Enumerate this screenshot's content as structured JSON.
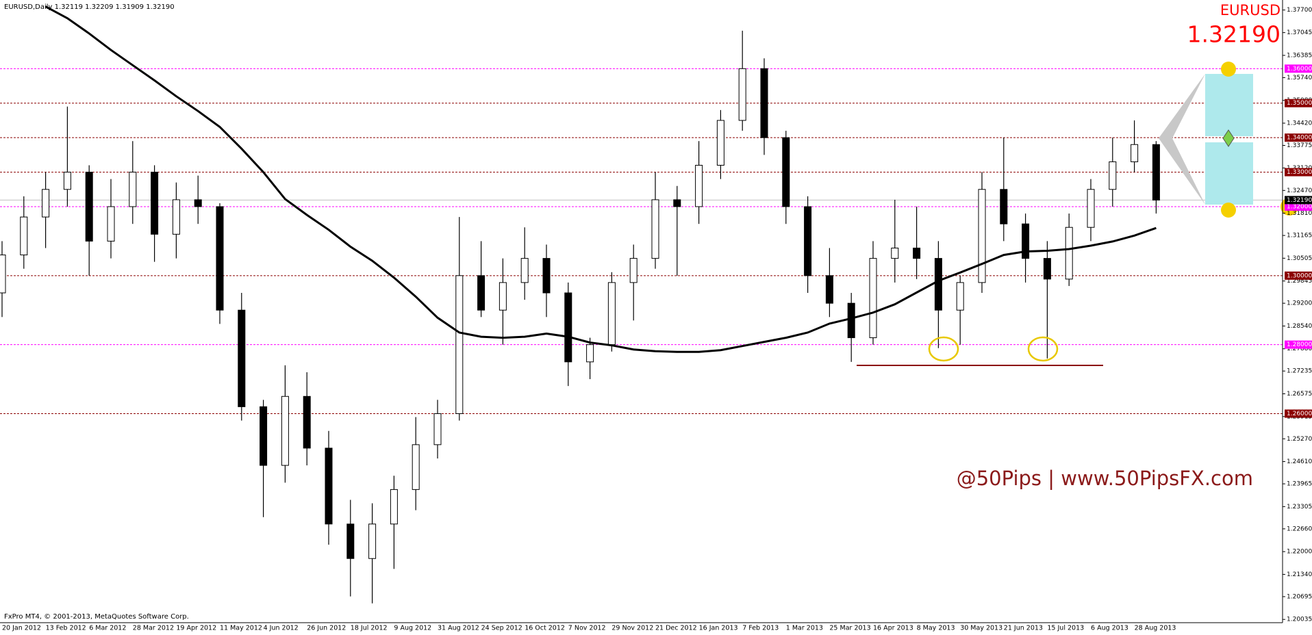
{
  "chart_data": {
    "type": "candlestick",
    "title": "EURUSD,Daily  1.32119 1.32209 1.31909 1.32190",
    "symbol": "EURUSD",
    "last_price": {
      "value": 1.3219,
      "label": "1.32190"
    },
    "watermark": "@50Pips | www.50PipsFX.com",
    "footer": "FxPro MT4, © 2001-2013, MetaQuotes Software Corp.",
    "candle_color": "#000000",
    "categories": [
      "20 Jan 2012",
      null,
      "13 Feb 2012",
      null,
      "6 Mar 2012",
      null,
      "28 Mar 2012",
      null,
      "19 Apr 2012",
      null,
      "11 May 2012",
      null,
      "4 Jun 2012",
      null,
      "26 Jun 2012",
      null,
      "18 Jul 2012",
      null,
      "9 Aug 2012",
      null,
      "31 Aug 2012",
      null,
      "24 Sep 2012",
      null,
      "16 Oct 2012",
      null,
      "7 Nov 2012",
      null,
      "29 Nov 2012",
      null,
      "21 Dec 2012",
      null,
      "16 Jan 2013",
      null,
      "7 Feb 2013",
      null,
      "1 Mar 2013",
      null,
      "25 Mar 2013",
      null,
      "16 Apr 2013",
      null,
      "8 May 2013",
      null,
      "30 May 2013",
      null,
      "21 Jun 2013",
      null,
      "15 Jul 2013",
      null,
      "6 Aug 2013",
      null,
      "28 Aug 2013",
      null
    ],
    "open": [
      1.295,
      1.306,
      1.317,
      1.325,
      1.33,
      1.31,
      1.32,
      1.33,
      1.312,
      1.322,
      1.32,
      1.29,
      1.262,
      1.245,
      1.265,
      1.25,
      1.228,
      1.218,
      1.228,
      1.238,
      1.251,
      1.26,
      1.3,
      1.29,
      1.298,
      1.305,
      1.295,
      1.275,
      1.28,
      1.298,
      1.305,
      1.322,
      1.32,
      1.332,
      1.345,
      1.36,
      1.34,
      1.32,
      1.3,
      1.292,
      1.282,
      1.305,
      1.308,
      1.305,
      1.29,
      1.298,
      1.325,
      1.315,
      1.305,
      1.299,
      1.314,
      1.325,
      1.333,
      1.338
    ],
    "high": [
      1.31,
      1.323,
      1.33,
      1.349,
      1.332,
      1.328,
      1.339,
      1.332,
      1.327,
      1.329,
      1.321,
      1.295,
      1.264,
      1.274,
      1.272,
      1.255,
      1.235,
      1.234,
      1.242,
      1.259,
      1.264,
      1.317,
      1.31,
      1.305,
      1.314,
      1.309,
      1.298,
      1.282,
      1.301,
      1.309,
      1.33,
      1.326,
      1.339,
      1.348,
      1.371,
      1.363,
      1.342,
      1.323,
      1.308,
      1.295,
      1.31,
      1.322,
      1.32,
      1.31,
      1.3,
      1.33,
      1.34,
      1.318,
      1.31,
      1.318,
      1.328,
      1.34,
      1.345,
      1.339
    ],
    "low": [
      1.288,
      1.302,
      1.308,
      1.32,
      1.3,
      1.305,
      1.315,
      1.304,
      1.305,
      1.315,
      1.286,
      1.258,
      1.23,
      1.24,
      1.245,
      1.222,
      1.207,
      1.205,
      1.215,
      1.232,
      1.247,
      1.258,
      1.288,
      1.28,
      1.293,
      1.288,
      1.268,
      1.27,
      1.278,
      1.287,
      1.302,
      1.3,
      1.315,
      1.328,
      1.342,
      1.335,
      1.315,
      1.295,
      1.288,
      1.275,
      1.28,
      1.298,
      1.299,
      1.279,
      1.28,
      1.295,
      1.31,
      1.298,
      1.276,
      1.297,
      1.31,
      1.32,
      1.33,
      1.318
    ],
    "close": [
      1.306,
      1.317,
      1.325,
      1.33,
      1.31,
      1.32,
      1.33,
      1.312,
      1.322,
      1.32,
      1.29,
      1.262,
      1.245,
      1.265,
      1.25,
      1.228,
      1.218,
      1.228,
      1.238,
      1.251,
      1.26,
      1.3,
      1.29,
      1.298,
      1.305,
      1.295,
      1.275,
      1.28,
      1.298,
      1.305,
      1.322,
      1.32,
      1.332,
      1.345,
      1.36,
      1.34,
      1.32,
      1.3,
      1.292,
      1.282,
      1.305,
      1.308,
      1.305,
      1.29,
      1.298,
      1.325,
      1.315,
      1.305,
      1.299,
      1.314,
      1.325,
      1.333,
      1.338,
      1.3219
    ],
    "moving_average": {
      "color": "#000000",
      "values": [
        null,
        null,
        1.378,
        1.3746,
        1.3702,
        1.3654,
        1.361,
        1.3566,
        1.352,
        1.3477,
        1.3431,
        1.3368,
        1.33,
        1.3222,
        1.3176,
        1.3133,
        1.3084,
        1.3043,
        1.2994,
        1.2939,
        1.2878,
        1.2835,
        1.2823,
        1.282,
        1.2823,
        1.2832,
        1.2823,
        1.2806,
        1.2798,
        1.2786,
        1.2781,
        1.2779,
        1.2779,
        1.2784,
        1.2796,
        1.2808,
        1.282,
        1.2835,
        1.2861,
        1.2876,
        1.2893,
        1.2917,
        1.2951,
        1.2985,
        1.3009,
        1.3034,
        1.306,
        1.307,
        1.3072,
        1.3077,
        1.3087,
        1.3099,
        1.3116,
        1.3138
      ]
    },
    "levels": [
      {
        "value": 1.36,
        "label": "1.36000",
        "color": "#ff00ff"
      },
      {
        "value": 1.35,
        "label": "1.35000",
        "color": "#8b0000"
      },
      {
        "value": 1.34,
        "label": "1.34000",
        "color": "#8b0000"
      },
      {
        "value": 1.33,
        "label": "1.33000",
        "color": "#8b0000"
      },
      {
        "value": 1.32,
        "label": "1.32000",
        "color": "#ff00ff"
      },
      {
        "value": 1.3,
        "label": "1.30000",
        "color": "#8b0000"
      },
      {
        "value": 1.28,
        "label": "1.28000",
        "color": "#ff00ff"
      },
      {
        "value": 1.26,
        "label": "1.26000",
        "color": "#8b0000"
      }
    ],
    "ylim": [
      1.1994,
      1.3799
    ],
    "yticks": [
      {
        "value": 1.377,
        "label": "1.37700"
      },
      {
        "value": 1.37045,
        "label": "1.37045"
      },
      {
        "value": 1.36385,
        "label": "1.36385"
      },
      {
        "value": 1.3574,
        "label": "1.35740"
      },
      {
        "value": 1.3508,
        "label": "1.35080"
      },
      {
        "value": 1.3442,
        "label": "1.34420"
      },
      {
        "value": 1.33775,
        "label": "1.33775"
      },
      {
        "value": 1.3312,
        "label": "1.33120"
      },
      {
        "value": 1.3247,
        "label": "1.32470"
      },
      {
        "value": 1.3181,
        "label": "1.31810"
      },
      {
        "value": 1.31165,
        "label": "1.31165"
      },
      {
        "value": 1.30505,
        "label": "1.30505"
      },
      {
        "value": 1.29845,
        "label": "1.29845"
      },
      {
        "value": 1.292,
        "label": "1.29200"
      },
      {
        "value": 1.2854,
        "label": "1.28540"
      },
      {
        "value": 1.2788,
        "label": "1.27880"
      },
      {
        "value": 1.27235,
        "label": "1.27235"
      },
      {
        "value": 1.26575,
        "label": "1.26575"
      },
      {
        "value": 1.25915,
        "label": "1.25915"
      },
      {
        "value": 1.2527,
        "label": "1.25270"
      },
      {
        "value": 1.2461,
        "label": "1.24610"
      },
      {
        "value": 1.23965,
        "label": "1.23965"
      },
      {
        "value": 1.23305,
        "label": "1.23305"
      },
      {
        "value": 1.2266,
        "label": "1.22660"
      },
      {
        "value": 1.22,
        "label": "1.22000"
      },
      {
        "value": 1.2134,
        "label": "1.21340"
      },
      {
        "value": 1.20695,
        "label": "1.20695"
      },
      {
        "value": 1.20035,
        "label": "1.20035"
      }
    ],
    "grid": false
  }
}
